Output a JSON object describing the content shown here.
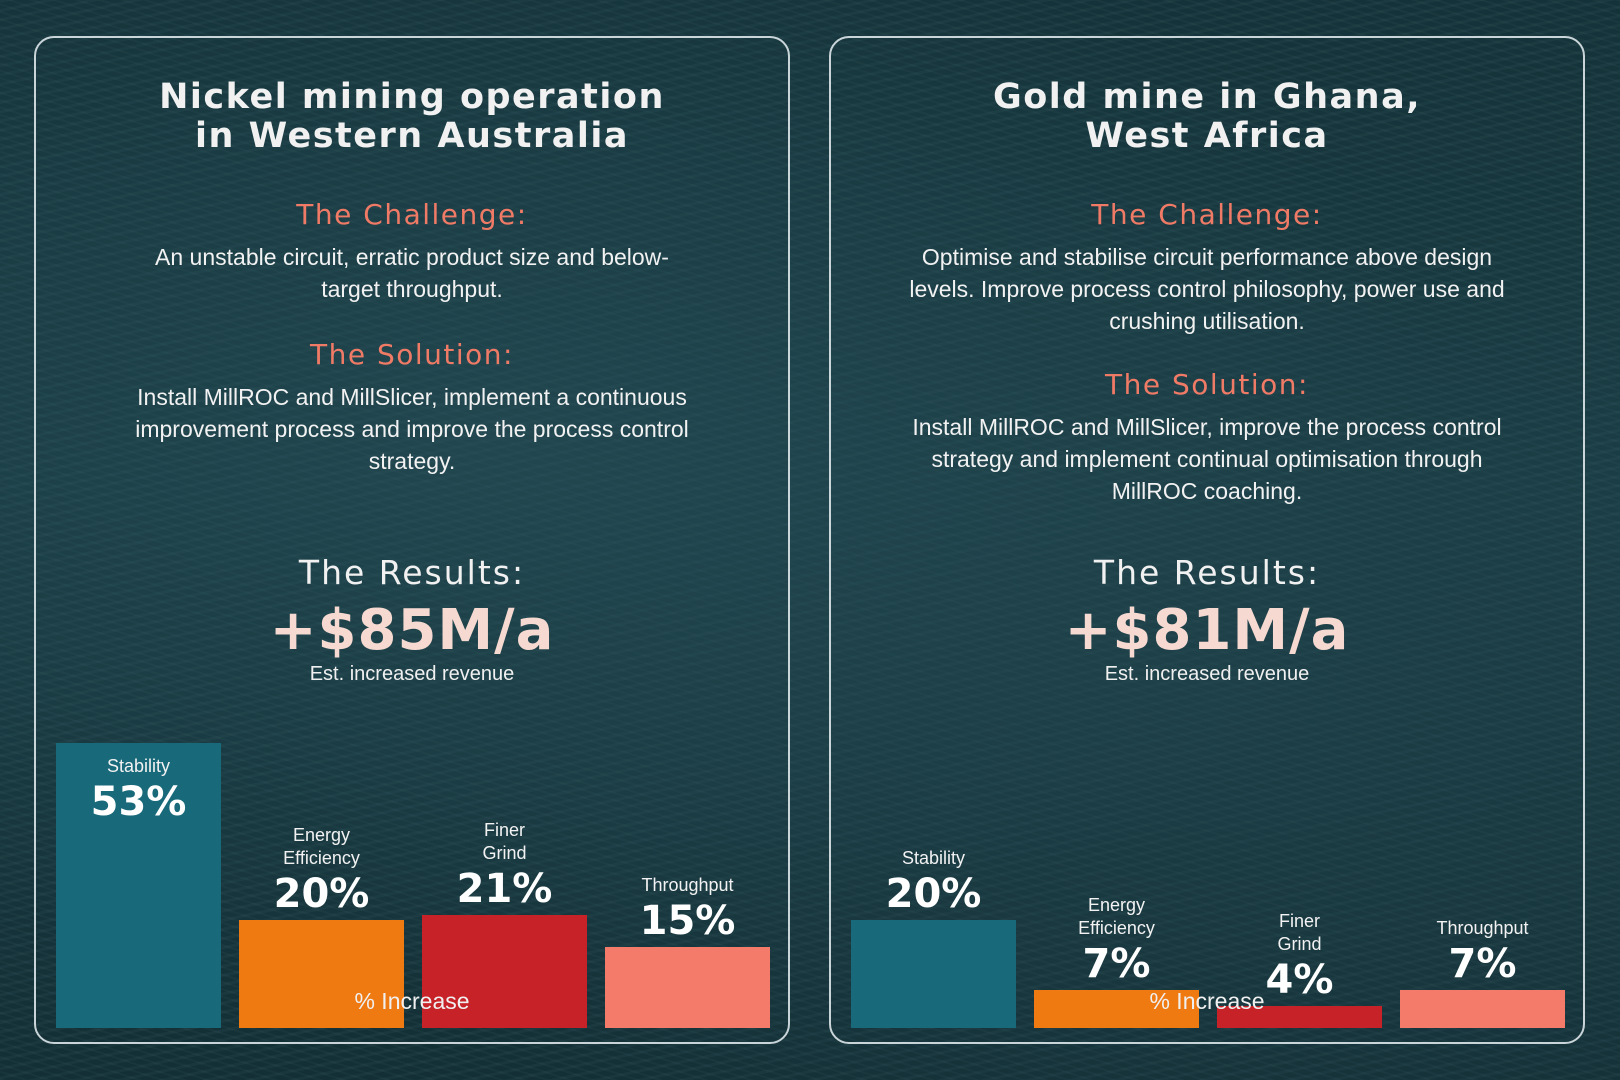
{
  "colors": {
    "teal": "#18697a",
    "orange": "#f07a12",
    "red": "#c72228",
    "salmon": "#f47b6a",
    "heading_accent": "#ef7a66"
  },
  "cards": [
    {
      "title_line1": "Nickel mining operation",
      "title_line2": "in Western Australia",
      "challenge_heading": "The Challenge:",
      "challenge_text": "An unstable circuit, erratic product size and below-target throughput.",
      "solution_heading": "The Solution:",
      "solution_text": "Install MillROC and MillSlicer, implement a continuous improvement process and improve the process control strategy.",
      "results_heading": "The Results:",
      "results_value": "+$85M/a",
      "results_note": "Est. increased revenue",
      "axis_label": "% Increase"
    },
    {
      "title_line1": "Gold mine in Ghana,",
      "title_line2": "West Africa",
      "challenge_heading": "The Challenge:",
      "challenge_text": "Optimise and stabilise circuit performance above design levels. Improve process control philosophy, power use and crushing utilisation.",
      "solution_heading": "The Solution:",
      "solution_text": "Install MillROC and MillSlicer, improve the process control strategy and implement continual optimisation through MillROC coaching.",
      "results_heading": "The Results:",
      "results_value": "+$81M/a",
      "results_note": "Est. increased revenue",
      "axis_label": "% Increase"
    }
  ],
  "chart_data": [
    {
      "type": "bar",
      "categories": [
        "Stability",
        "Energy Efficiency",
        "Finer Grind",
        "Throughput"
      ],
      "values": [
        53,
        20,
        21,
        15
      ],
      "value_labels": [
        "53%",
        "20%",
        "21%",
        "15%"
      ],
      "colors": [
        "#18697a",
        "#f07a12",
        "#c72228",
        "#f47b6a"
      ],
      "xlabel": "% Increase",
      "ylabel": "",
      "ylim": [
        0,
        53
      ]
    },
    {
      "type": "bar",
      "categories": [
        "Stability",
        "Energy Efficiency",
        "Finer Grind",
        "Throughput"
      ],
      "values": [
        20,
        7,
        4,
        7
      ],
      "value_labels": [
        "20%",
        "7%",
        "4%",
        "7%"
      ],
      "colors": [
        "#18697a",
        "#f07a12",
        "#c72228",
        "#f47b6a"
      ],
      "xlabel": "% Increase",
      "ylabel": "",
      "ylim": [
        0,
        53
      ]
    }
  ]
}
